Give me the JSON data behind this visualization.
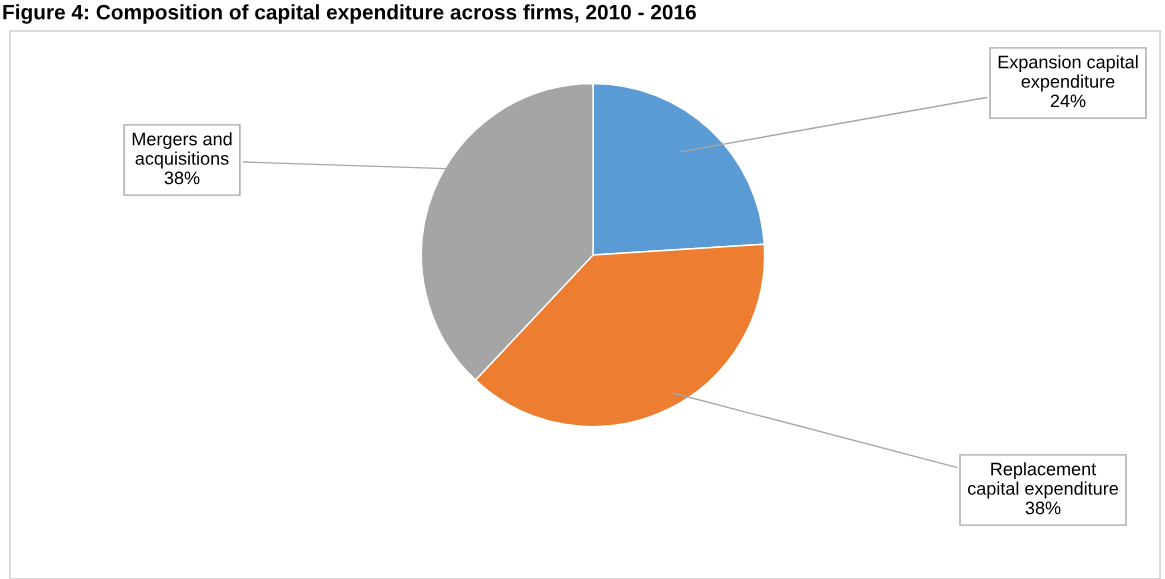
{
  "chart_data": {
    "type": "pie",
    "title": "Figure 4: Composition of capital expenditure across firms, 2010 - 2016",
    "categories": [
      "Expansion capital\nexpenditure",
      "Replacement\ncapital expenditure",
      "Mergers and\nacquisitions"
    ],
    "values": [
      24,
      38,
      38
    ],
    "value_labels": [
      "24%",
      "38%",
      "38%"
    ],
    "colors": [
      "#5b9bd5",
      "#ed7d31",
      "#a5a5a5"
    ]
  }
}
